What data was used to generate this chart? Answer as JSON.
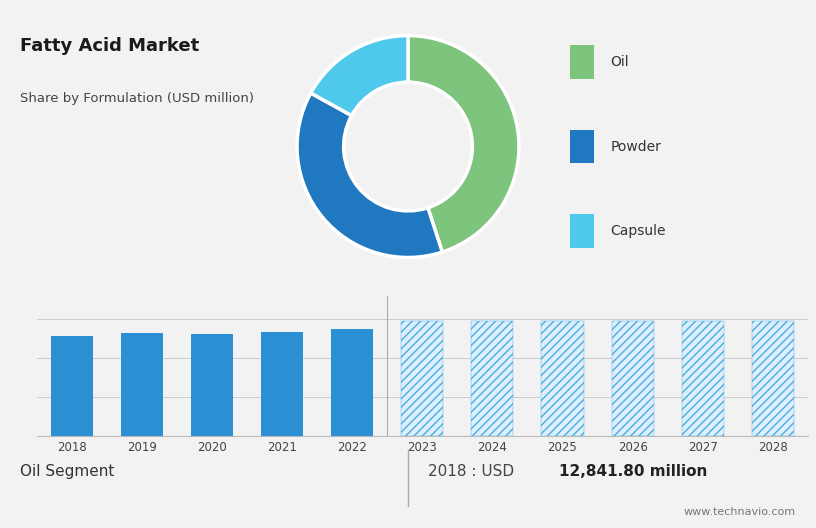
{
  "title": "Fatty Acid Market",
  "subtitle": "Share by Formulation (USD million)",
  "top_bg_color": "#ccd9e3",
  "bottom_bg_color": "#f2f2f2",
  "pie_values": [
    45,
    38,
    17
  ],
  "pie_colors": [
    "#7dc47d",
    "#2079c0",
    "#4ec9ec"
  ],
  "pie_labels": [
    "Oil",
    "Powder",
    "Capsule"
  ],
  "bar_years": [
    2018,
    2019,
    2020,
    2021,
    2022,
    2023,
    2024,
    2025,
    2026,
    2027,
    2028
  ],
  "bar_values_solid": [
    12841,
    13200,
    13050,
    13400,
    13800
  ],
  "bar_values_hatch": [
    14800,
    14800,
    14800,
    14800,
    14800,
    14800
  ],
  "bar_solid_color": "#2b8fd4",
  "bar_hatch_facecolor": "#ddeeff",
  "bar_hatch_edgecolor": "#4aacdf",
  "bar_hatch_pattern": "////",
  "footer_left": "Oil Segment",
  "footer_right_normal": "2018 : USD ",
  "footer_right_bold": "12,841.80 million",
  "footer_url": "www.technavio.com",
  "grid_color": "#cccccc",
  "separator_color": "#aaaaaa"
}
